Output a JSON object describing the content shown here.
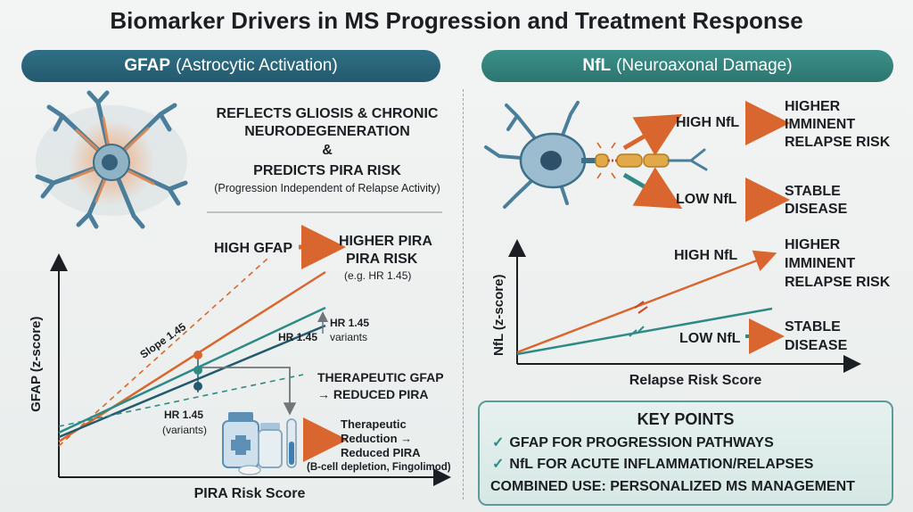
{
  "title": "Biomarker Drivers in MS Progression and Treatment Response",
  "left_panel": {
    "banner_bold": "GFAP",
    "banner_rest": "(Astrocytic Activation)",
    "line1": "REFLECTS GLIOSIS & CHRONIC",
    "line2": "NEURODEGENERATION",
    "amp": "&",
    "line3": "PREDICTS PIRA RISK",
    "line4": "(Progression Independent of Relapse Activity)",
    "high_label": "HIGH GFAP",
    "high_result1": "HIGHER PIRA",
    "high_result2": "PIRA RISK",
    "hr_example": "(e.g. HR 1.45)",
    "hr_variants_top1": "HR 1.45",
    "hr_variants_top2": "variants",
    "hr_mid": "HR 1.45",
    "slope": "Slope 1.45",
    "therapeutic1": "THERAPEUTIC GFAP",
    "therapeutic2": "→ REDUCED PIRA",
    "hr_bottom1": "HR 1.45",
    "hr_bottom2": "(variants)",
    "reduction1": "Therapeutic",
    "reduction2": "Reduction →",
    "reduction3": "Reduced PIRA",
    "reduction4": "(B-cell depletion, Fingolimod)",
    "y_axis": "GFAP (z-score)",
    "x_axis": "PIRA Risk Score"
  },
  "right_panel": {
    "banner_bold": "NfL",
    "banner_rest": "(Neuroaxonal Damage)",
    "high_nfl": "HIGH NfL",
    "high_result1": "HIGHER",
    "high_result2": "IMMINENT",
    "high_result3": "RELAPSE RISK",
    "low_nfl": "LOW NfL",
    "low_result1": "STABLE",
    "low_result2": "DISEASE",
    "chart_high": "HIGH NfL",
    "chart_high_r1": "HIGHER",
    "chart_high_r2": "IMMINENT",
    "chart_high_r3": "RELAPSE RISK",
    "chart_low": "LOW NfL",
    "chart_low_r1": "STABLE",
    "chart_low_r2": "DISEASE",
    "y_axis": "NfL (z-score)",
    "x_axis": "Relapse Risk Score"
  },
  "key_points": {
    "heading": "KEY POINTS",
    "p1": "GFAP FOR PROGRESSION PATHWAYS",
    "p2": "NfL FOR ACUTE INFLAMMATION/RELAPSES",
    "p3": "COMBINED USE: PERSONALIZED MS MANAGEMENT"
  },
  "colors": {
    "orange": "#d9662e",
    "teal": "#2f8a86",
    "navy": "#245a6e",
    "gray": "#8a9396"
  }
}
